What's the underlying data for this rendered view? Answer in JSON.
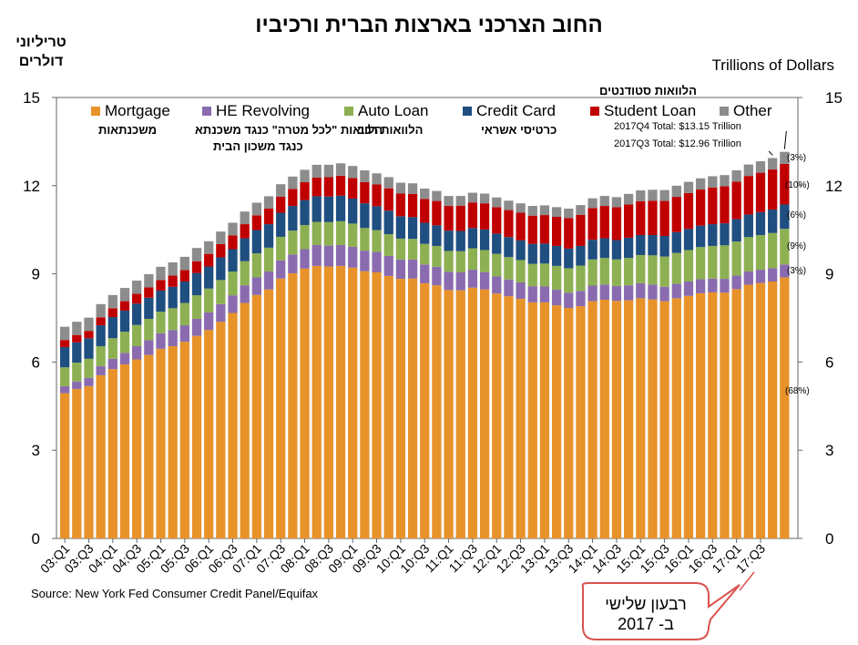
{
  "title": "החוב הצרכני בארצות הברית ורכיביו",
  "y_units_he": [
    "טריליוני",
    "דולרים"
  ],
  "y_units_en": "Trillions of Dollars",
  "source": "Source: New York Fed Consumer Credit Panel/Equifax",
  "callout": {
    "line1": "רבעון שלישי",
    "line2": "ב- 2017"
  },
  "legend": [
    {
      "key": "mortgage",
      "label": "Mortgage",
      "he": "משכנתאות"
    },
    {
      "key": "he",
      "label": "HE Revolving",
      "he": "הלוואות \"לכל מטרה\" כנגד משכנתא"
    },
    {
      "key": "he_line2",
      "label": "",
      "he": "כנגד משכון הבית"
    },
    {
      "key": "auto",
      "label": "Auto Loan",
      "he": "הלוואות רכב"
    },
    {
      "key": "cc",
      "label": "Credit Card",
      "he": "כרטיסי אשראי"
    },
    {
      "key": "student",
      "label": "Student Loan",
      "he": "הלוואות סטודנטים"
    },
    {
      "key": "other",
      "label": "Other",
      "he": ""
    }
  ],
  "annotations": {
    "q4_total": "2017Q4 Total: $13.15 Trillion",
    "q3_total": "2017Q3 Total: $12.96 Trillion",
    "pcts": [
      "(3%)",
      "(10%)",
      "(6%)",
      "(9%)",
      "(3%)",
      "(68%)"
    ]
  },
  "chart_data": {
    "type": "bar",
    "stacked": true,
    "ylim": [
      0,
      15
    ],
    "yticks": [
      0,
      3,
      6,
      9,
      12,
      15
    ],
    "xtick_labels": [
      "03:Q1",
      "03:Q3",
      "04:Q1",
      "04:Q3",
      "05:Q1",
      "05:Q3",
      "06:Q1",
      "06:Q3",
      "07:Q1",
      "07:Q3",
      "08:Q1",
      "08:Q3",
      "09:Q1",
      "09:Q3",
      "10:Q1",
      "10:Q3",
      "11:Q1",
      "11:Q3",
      "12:Q1",
      "12:Q3",
      "13:Q1",
      "13:Q3",
      "14:Q1",
      "14:Q3",
      "15:Q1",
      "15:Q3",
      "16:Q1",
      "16:Q3",
      "17:Q1",
      "17:Q3"
    ],
    "colors": {
      "mortgage": "#e8922a",
      "he": "#8a6bb0",
      "auto": "#8db052",
      "cc": "#1f4e80",
      "student": "#c00000",
      "other": "#8c8c8c"
    },
    "series": [
      {
        "key": "mortgage",
        "name": "Mortgage",
        "values": [
          4.94,
          5.08,
          5.18,
          5.55,
          5.76,
          5.92,
          6.09,
          6.24,
          6.45,
          6.54,
          6.69,
          6.89,
          7.09,
          7.37,
          7.67,
          8.01,
          8.28,
          8.47,
          8.84,
          9.02,
          9.18,
          9.27,
          9.25,
          9.27,
          9.21,
          9.09,
          9.05,
          8.93,
          8.83,
          8.84,
          8.68,
          8.61,
          8.45,
          8.44,
          8.53,
          8.47,
          8.33,
          8.24,
          8.15,
          8.03,
          8.03,
          7.93,
          7.84,
          7.9,
          8.07,
          8.12,
          8.08,
          8.1,
          8.17,
          8.13,
          8.07,
          8.17,
          8.25,
          8.34,
          8.37,
          8.36,
          8.48,
          8.63,
          8.69,
          8.74,
          8.88
        ]
      },
      {
        "key": "he",
        "name": "HE Revolving",
        "values": [
          0.24,
          0.26,
          0.28,
          0.31,
          0.35,
          0.39,
          0.45,
          0.5,
          0.53,
          0.55,
          0.56,
          0.58,
          0.6,
          0.6,
          0.6,
          0.6,
          0.6,
          0.61,
          0.62,
          0.64,
          0.66,
          0.71,
          0.71,
          0.71,
          0.71,
          0.7,
          0.7,
          0.68,
          0.66,
          0.65,
          0.64,
          0.63,
          0.62,
          0.61,
          0.61,
          0.59,
          0.58,
          0.57,
          0.56,
          0.55,
          0.54,
          0.53,
          0.52,
          0.52,
          0.53,
          0.52,
          0.51,
          0.51,
          0.51,
          0.51,
          0.49,
          0.49,
          0.49,
          0.48,
          0.47,
          0.47,
          0.46,
          0.45,
          0.45,
          0.45,
          0.44
        ]
      },
      {
        "key": "auto",
        "name": "Auto Loan",
        "values": [
          0.64,
          0.64,
          0.65,
          0.68,
          0.7,
          0.72,
          0.72,
          0.73,
          0.73,
          0.74,
          0.76,
          0.8,
          0.81,
          0.82,
          0.81,
          0.82,
          0.82,
          0.81,
          0.8,
          0.81,
          0.82,
          0.79,
          0.8,
          0.81,
          0.79,
          0.77,
          0.74,
          0.74,
          0.71,
          0.7,
          0.7,
          0.71,
          0.71,
          0.72,
          0.73,
          0.75,
          0.77,
          0.76,
          0.76,
          0.76,
          0.78,
          0.81,
          0.83,
          0.86,
          0.89,
          0.9,
          0.9,
          0.93,
          0.96,
          0.99,
          1.03,
          1.05,
          1.07,
          1.09,
          1.11,
          1.14,
          1.16,
          1.17,
          1.18,
          1.2,
          1.21
        ]
      },
      {
        "key": "cc",
        "name": "Credit Card",
        "values": [
          0.69,
          0.69,
          0.7,
          0.71,
          0.72,
          0.72,
          0.73,
          0.72,
          0.72,
          0.73,
          0.73,
          0.76,
          0.75,
          0.77,
          0.76,
          0.78,
          0.79,
          0.8,
          0.82,
          0.84,
          0.85,
          0.87,
          0.87,
          0.87,
          0.85,
          0.84,
          0.81,
          0.8,
          0.76,
          0.74,
          0.72,
          0.7,
          0.69,
          0.69,
          0.69,
          0.7,
          0.69,
          0.68,
          0.67,
          0.68,
          0.68,
          0.68,
          0.67,
          0.67,
          0.67,
          0.67,
          0.66,
          0.69,
          0.68,
          0.69,
          0.7,
          0.71,
          0.72,
          0.73,
          0.74,
          0.75,
          0.76,
          0.77,
          0.78,
          0.8,
          0.83
        ]
      },
      {
        "key": "student",
        "name": "Student Loan",
        "values": [
          0.24,
          0.25,
          0.25,
          0.27,
          0.3,
          0.32,
          0.33,
          0.35,
          0.36,
          0.38,
          0.39,
          0.4,
          0.43,
          0.45,
          0.47,
          0.48,
          0.5,
          0.53,
          0.55,
          0.58,
          0.61,
          0.64,
          0.66,
          0.68,
          0.7,
          0.72,
          0.74,
          0.76,
          0.77,
          0.79,
          0.81,
          0.83,
          0.84,
          0.86,
          0.87,
          0.89,
          0.9,
          0.92,
          0.94,
          0.96,
          0.97,
          0.99,
          1.04,
          1.06,
          1.08,
          1.1,
          1.12,
          1.13,
          1.15,
          1.17,
          1.19,
          1.2,
          1.22,
          1.23,
          1.25,
          1.26,
          1.28,
          1.31,
          1.34,
          1.36,
          1.38
        ]
      },
      {
        "key": "other",
        "name": "Other",
        "values": [
          0.45,
          0.45,
          0.45,
          0.45,
          0.45,
          0.45,
          0.45,
          0.45,
          0.45,
          0.45,
          0.45,
          0.45,
          0.43,
          0.43,
          0.43,
          0.43,
          0.43,
          0.42,
          0.42,
          0.42,
          0.42,
          0.43,
          0.42,
          0.42,
          0.41,
          0.4,
          0.38,
          0.38,
          0.37,
          0.36,
          0.35,
          0.34,
          0.34,
          0.33,
          0.33,
          0.33,
          0.33,
          0.32,
          0.32,
          0.33,
          0.33,
          0.33,
          0.32,
          0.33,
          0.33,
          0.34,
          0.34,
          0.36,
          0.37,
          0.37,
          0.37,
          0.38,
          0.38,
          0.38,
          0.38,
          0.38,
          0.38,
          0.39,
          0.39,
          0.39,
          0.41
        ]
      }
    ]
  }
}
